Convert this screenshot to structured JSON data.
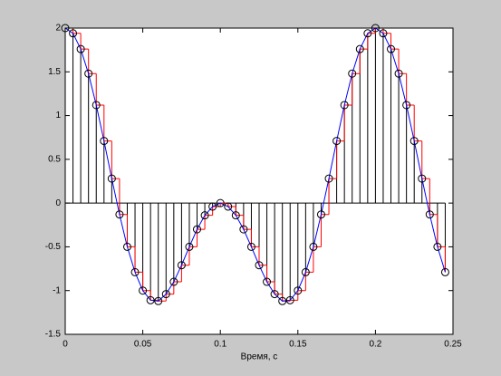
{
  "chart_data": {
    "type": "stem",
    "xlabel": "Время, с",
    "x": [
      0,
      0.005,
      0.01,
      0.015,
      0.02,
      0.025,
      0.03,
      0.035,
      0.04,
      0.045,
      0.05,
      0.055,
      0.06,
      0.065,
      0.07,
      0.075,
      0.08,
      0.085,
      0.09,
      0.095,
      0.1,
      0.105,
      0.11,
      0.115,
      0.12,
      0.125,
      0.13,
      0.135,
      0.14,
      0.145,
      0.15,
      0.155,
      0.16,
      0.165,
      0.17,
      0.175,
      0.18,
      0.185,
      0.19,
      0.195,
      0.2,
      0.205,
      0.21,
      0.215,
      0.22,
      0.225,
      0.23,
      0.235,
      0.24,
      0.245
    ],
    "values": [
      2,
      1.94,
      1.76,
      1.48,
      1.12,
      0.71,
      0.28,
      -0.13,
      -0.5,
      -0.79,
      -1,
      -1.11,
      -1.12,
      -1.04,
      -0.9,
      -0.71,
      -0.5,
      -0.3,
      -0.14,
      -0.04,
      0,
      -0.04,
      -0.14,
      -0.3,
      -0.5,
      -0.71,
      -0.9,
      -1.04,
      -1.12,
      -1.11,
      -1,
      -0.79,
      -0.5,
      -0.13,
      0.28,
      0.71,
      1.12,
      1.48,
      1.76,
      1.94,
      2,
      1.94,
      1.76,
      1.48,
      1.12,
      0.71,
      0.28,
      -0.13,
      -0.5,
      -0.79
    ],
    "xlim": [
      0,
      0.25
    ],
    "xticks": [
      0,
      0.05,
      0.1,
      0.15,
      0.2,
      0.25
    ],
    "ylim": [
      -1.5,
      2
    ],
    "yticks": [
      -1.5,
      -1,
      -0.5,
      0,
      0.5,
      1,
      1.5,
      2
    ],
    "stem_color": "#000000",
    "stairs_color": "#ff0000",
    "line_color": "#0000ff"
  }
}
